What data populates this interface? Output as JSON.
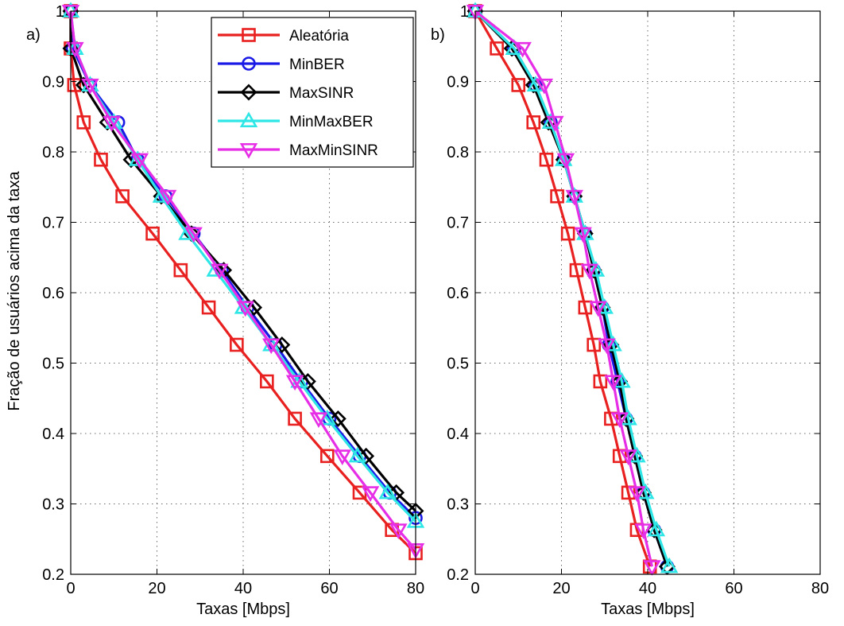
{
  "figure": {
    "ylabel": "Fração de usuários acima da taxa",
    "xlabel": "Taxas [Mbps]"
  },
  "legend": [
    {
      "name": "Aleatória",
      "color": "#e8201f",
      "marker": "square"
    },
    {
      "name": "MinBER",
      "color": "#1a1ae6",
      "marker": "circle"
    },
    {
      "name": "MaxSINR",
      "color": "#000000",
      "marker": "diamond"
    },
    {
      "name": "MinMaxBER",
      "color": "#2ee6e6",
      "marker": "triangle-up"
    },
    {
      "name": "MaxMinSINR",
      "color": "#e62ee6",
      "marker": "triangle-down"
    }
  ],
  "chart_data": [
    {
      "type": "line",
      "panel": "a)",
      "xlabel": "Taxas [Mbps]",
      "ylabel": "Fração de usuários acima da taxa",
      "xlim": [
        0,
        80
      ],
      "ylim": [
        0.2,
        1
      ],
      "xticks": [
        0,
        20,
        40,
        60,
        80
      ],
      "yticks": [
        0.2,
        0.3,
        0.4,
        0.5,
        0.6,
        0.7,
        0.8,
        0.9,
        1
      ],
      "ytick_labels": [
        "0.2",
        "0.3",
        "0.4",
        "0.5",
        "0.6",
        "0.7",
        "0.8",
        "0.9",
        "1"
      ],
      "grid": true,
      "legend_position": "top-right",
      "series": [
        {
          "name": "Aleatória",
          "color": "#e8201f",
          "marker": "square",
          "points": [
            [
              0,
              1
            ],
            [
              0,
              0.947
            ],
            [
              0.8,
              0.895
            ],
            [
              3,
              0.842
            ],
            [
              7,
              0.789
            ],
            [
              12,
              0.737
            ],
            [
              19,
              0.684
            ],
            [
              25.5,
              0.632
            ],
            [
              32,
              0.579
            ],
            [
              38.5,
              0.526
            ],
            [
              45.5,
              0.474
            ],
            [
              52,
              0.421
            ],
            [
              59.5,
              0.368
            ],
            [
              67,
              0.316
            ],
            [
              74.5,
              0.263
            ],
            [
              80,
              0.23
            ]
          ]
        },
        {
          "name": "MinBER",
          "color": "#1a1ae6",
          "marker": "circle",
          "points": [
            [
              0,
              1
            ],
            [
              0.5,
              0.947
            ],
            [
              4.5,
              0.895
            ],
            [
              11,
              0.842
            ],
            [
              15.5,
              0.789
            ],
            [
              22,
              0.737
            ],
            [
              28.5,
              0.684
            ],
            [
              35,
              0.632
            ],
            [
              41,
              0.579
            ],
            [
              47.5,
              0.526
            ],
            [
              53.5,
              0.474
            ],
            [
              60,
              0.421
            ],
            [
              67,
              0.368
            ],
            [
              74,
              0.316
            ],
            [
              80,
              0.28
            ]
          ]
        },
        {
          "name": "MaxSINR",
          "color": "#000000",
          "marker": "diamond",
          "points": [
            [
              0,
              1
            ],
            [
              0,
              0.947
            ],
            [
              3,
              0.895
            ],
            [
              8.5,
              0.842
            ],
            [
              14,
              0.789
            ],
            [
              21,
              0.737
            ],
            [
              28,
              0.684
            ],
            [
              35.5,
              0.632
            ],
            [
              42.5,
              0.579
            ],
            [
              49,
              0.526
            ],
            [
              55,
              0.474
            ],
            [
              62,
              0.421
            ],
            [
              68.5,
              0.368
            ],
            [
              75.5,
              0.316
            ],
            [
              80,
              0.29
            ]
          ]
        },
        {
          "name": "MinMaxBER",
          "color": "#2ee6e6",
          "marker": "triangle-up",
          "points": [
            [
              0,
              1
            ],
            [
              1,
              0.947
            ],
            [
              4.5,
              0.895
            ],
            [
              10,
              0.842
            ],
            [
              15.5,
              0.789
            ],
            [
              21,
              0.737
            ],
            [
              27,
              0.684
            ],
            [
              33.5,
              0.632
            ],
            [
              40,
              0.579
            ],
            [
              46.5,
              0.526
            ],
            [
              53,
              0.474
            ],
            [
              59.5,
              0.421
            ],
            [
              66.5,
              0.368
            ],
            [
              73.5,
              0.316
            ],
            [
              80,
              0.275
            ]
          ]
        },
        {
          "name": "MaxMinSINR",
          "color": "#e62ee6",
          "marker": "triangle-down",
          "points": [
            [
              0,
              1
            ],
            [
              1,
              0.947
            ],
            [
              4.5,
              0.895
            ],
            [
              9.5,
              0.842
            ],
            [
              16,
              0.789
            ],
            [
              22.5,
              0.737
            ],
            [
              28.5,
              0.684
            ],
            [
              34.5,
              0.632
            ],
            [
              40.5,
              0.579
            ],
            [
              46.5,
              0.526
            ],
            [
              52,
              0.474
            ],
            [
              57.5,
              0.421
            ],
            [
              63,
              0.368
            ],
            [
              69.5,
              0.316
            ],
            [
              76,
              0.263
            ],
            [
              80,
              0.235
            ]
          ]
        }
      ]
    },
    {
      "type": "line",
      "panel": "b)",
      "xlabel": "Taxas [Mbps]",
      "ylabel": "",
      "xlim": [
        0,
        80
      ],
      "ylim": [
        0.2,
        1
      ],
      "xticks": [
        0,
        20,
        40,
        60,
        80
      ],
      "yticks": [
        0.2,
        0.3,
        0.4,
        0.5,
        0.6,
        0.7,
        0.8,
        0.9,
        1
      ],
      "ytick_labels": [
        "0.2",
        "0.3",
        "0.4",
        "0.5",
        "0.6",
        "0.7",
        "0.8",
        "0.9",
        "1"
      ],
      "grid": true,
      "series": [
        {
          "name": "Aleatória",
          "color": "#e8201f",
          "marker": "square",
          "points": [
            [
              0,
              1
            ],
            [
              5,
              0.947
            ],
            [
              10,
              0.895
            ],
            [
              13.5,
              0.842
            ],
            [
              16.5,
              0.789
            ],
            [
              19,
              0.737
            ],
            [
              21.5,
              0.684
            ],
            [
              23.5,
              0.632
            ],
            [
              25.5,
              0.579
            ],
            [
              27.5,
              0.526
            ],
            [
              29,
              0.474
            ],
            [
              31.5,
              0.421
            ],
            [
              33.5,
              0.368
            ],
            [
              35.5,
              0.316
            ],
            [
              37.5,
              0.263
            ],
            [
              40.5,
              0.211
            ]
          ]
        },
        {
          "name": "MinBER",
          "color": "#1a1ae6",
          "marker": "circle",
          "points": [
            [
              0,
              1
            ],
            [
              9,
              0.947
            ],
            [
              14,
              0.895
            ],
            [
              17.5,
              0.842
            ],
            [
              20.5,
              0.789
            ],
            [
              23,
              0.737
            ],
            [
              25.5,
              0.684
            ],
            [
              27.5,
              0.632
            ],
            [
              29.5,
              0.579
            ],
            [
              31,
              0.526
            ],
            [
              33,
              0.474
            ],
            [
              35,
              0.421
            ],
            [
              37,
              0.368
            ],
            [
              39,
              0.316
            ],
            [
              41.5,
              0.263
            ],
            [
              44.5,
              0.211
            ]
          ]
        },
        {
          "name": "MaxSINR",
          "color": "#000000",
          "marker": "diamond",
          "points": [
            [
              0,
              1
            ],
            [
              8.5,
              0.947
            ],
            [
              13.5,
              0.895
            ],
            [
              17,
              0.842
            ],
            [
              20.5,
              0.789
            ],
            [
              23,
              0.737
            ],
            [
              25.5,
              0.684
            ],
            [
              27.5,
              0.632
            ],
            [
              29.5,
              0.579
            ],
            [
              31.5,
              0.526
            ],
            [
              33.5,
              0.474
            ],
            [
              35,
              0.421
            ],
            [
              37,
              0.368
            ],
            [
              39,
              0.316
            ],
            [
              41.5,
              0.263
            ],
            [
              44.5,
              0.211
            ]
          ]
        },
        {
          "name": "MinMaxBER",
          "color": "#2ee6e6",
          "marker": "triangle-up",
          "points": [
            [
              0,
              1
            ],
            [
              9,
              0.947
            ],
            [
              14,
              0.895
            ],
            [
              17.5,
              0.842
            ],
            [
              20.5,
              0.789
            ],
            [
              23,
              0.737
            ],
            [
              25.5,
              0.684
            ],
            [
              28,
              0.632
            ],
            [
              30,
              0.579
            ],
            [
              32,
              0.526
            ],
            [
              34,
              0.474
            ],
            [
              35.5,
              0.421
            ],
            [
              37.5,
              0.368
            ],
            [
              39.5,
              0.316
            ],
            [
              42,
              0.263
            ],
            [
              45,
              0.211
            ]
          ]
        },
        {
          "name": "MaxMinSINR",
          "color": "#e62ee6",
          "marker": "triangle-down",
          "points": [
            [
              0,
              1
            ],
            [
              11,
              0.947
            ],
            [
              16,
              0.895
            ],
            [
              18.5,
              0.842
            ],
            [
              21,
              0.789
            ],
            [
              23,
              0.737
            ],
            [
              25,
              0.684
            ],
            [
              26.5,
              0.632
            ],
            [
              28.5,
              0.579
            ],
            [
              30.5,
              0.526
            ],
            [
              32,
              0.474
            ],
            [
              33.5,
              0.421
            ],
            [
              35.5,
              0.368
            ],
            [
              37.5,
              0.316
            ],
            [
              39,
              0.263
            ],
            [
              41,
              0.211
            ]
          ]
        }
      ]
    }
  ]
}
